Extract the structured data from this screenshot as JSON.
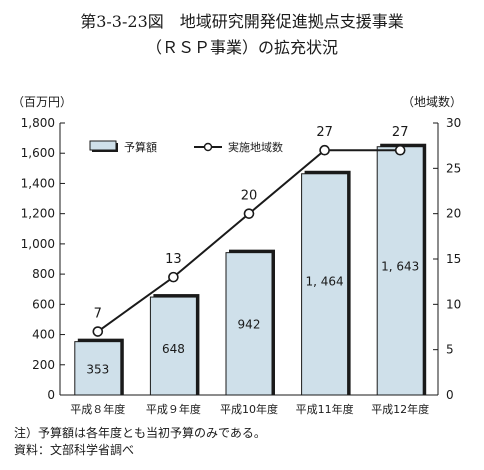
{
  "figure": {
    "title_line1": "第3-3-23図　地域研究開発促進拠点支援事業",
    "title_line2": "（ＲＳＰ事業）の拡充状況"
  },
  "notes": {
    "note": "注）予算額は各年度とも当初予算のみである。",
    "source": "資料：文部科学省調べ"
  },
  "chart_data": {
    "type": "bar+line",
    "categories": [
      "平成８年度",
      "平成９年度",
      "平成10年度",
      "平成11年度",
      "平成12年度"
    ],
    "series": [
      {
        "name": "予算額",
        "type": "bar",
        "axis": "left",
        "values": [
          353,
          648,
          942,
          1464,
          1643
        ],
        "labels": [
          "353",
          "648",
          "942",
          "1, 464",
          "1, 643"
        ]
      },
      {
        "name": "実施地域数",
        "type": "line",
        "axis": "right",
        "values": [
          7,
          13,
          20,
          27,
          27
        ],
        "labels": [
          "7",
          "13",
          "20",
          "27",
          "27"
        ]
      }
    ],
    "y_left": {
      "label": "（百万円）",
      "min": 0,
      "max": 1800,
      "step": 200,
      "ticks": [
        "0",
        "200",
        "400",
        "600",
        "800",
        "1,000",
        "1,200",
        "1,400",
        "1,600",
        "1,800"
      ]
    },
    "y_right": {
      "label": "（地域数）",
      "min": 0,
      "max": 30,
      "step": 5,
      "ticks": [
        "0",
        "5",
        "10",
        "15",
        "20",
        "25",
        "30"
      ]
    },
    "legend_position": "top-left",
    "grid": false,
    "colors": {
      "bar_fill": "#cfe0ea",
      "bar_shadow": "#1a1a1a",
      "line": "#1a1a1a",
      "axis": "#1a1a1a"
    }
  }
}
